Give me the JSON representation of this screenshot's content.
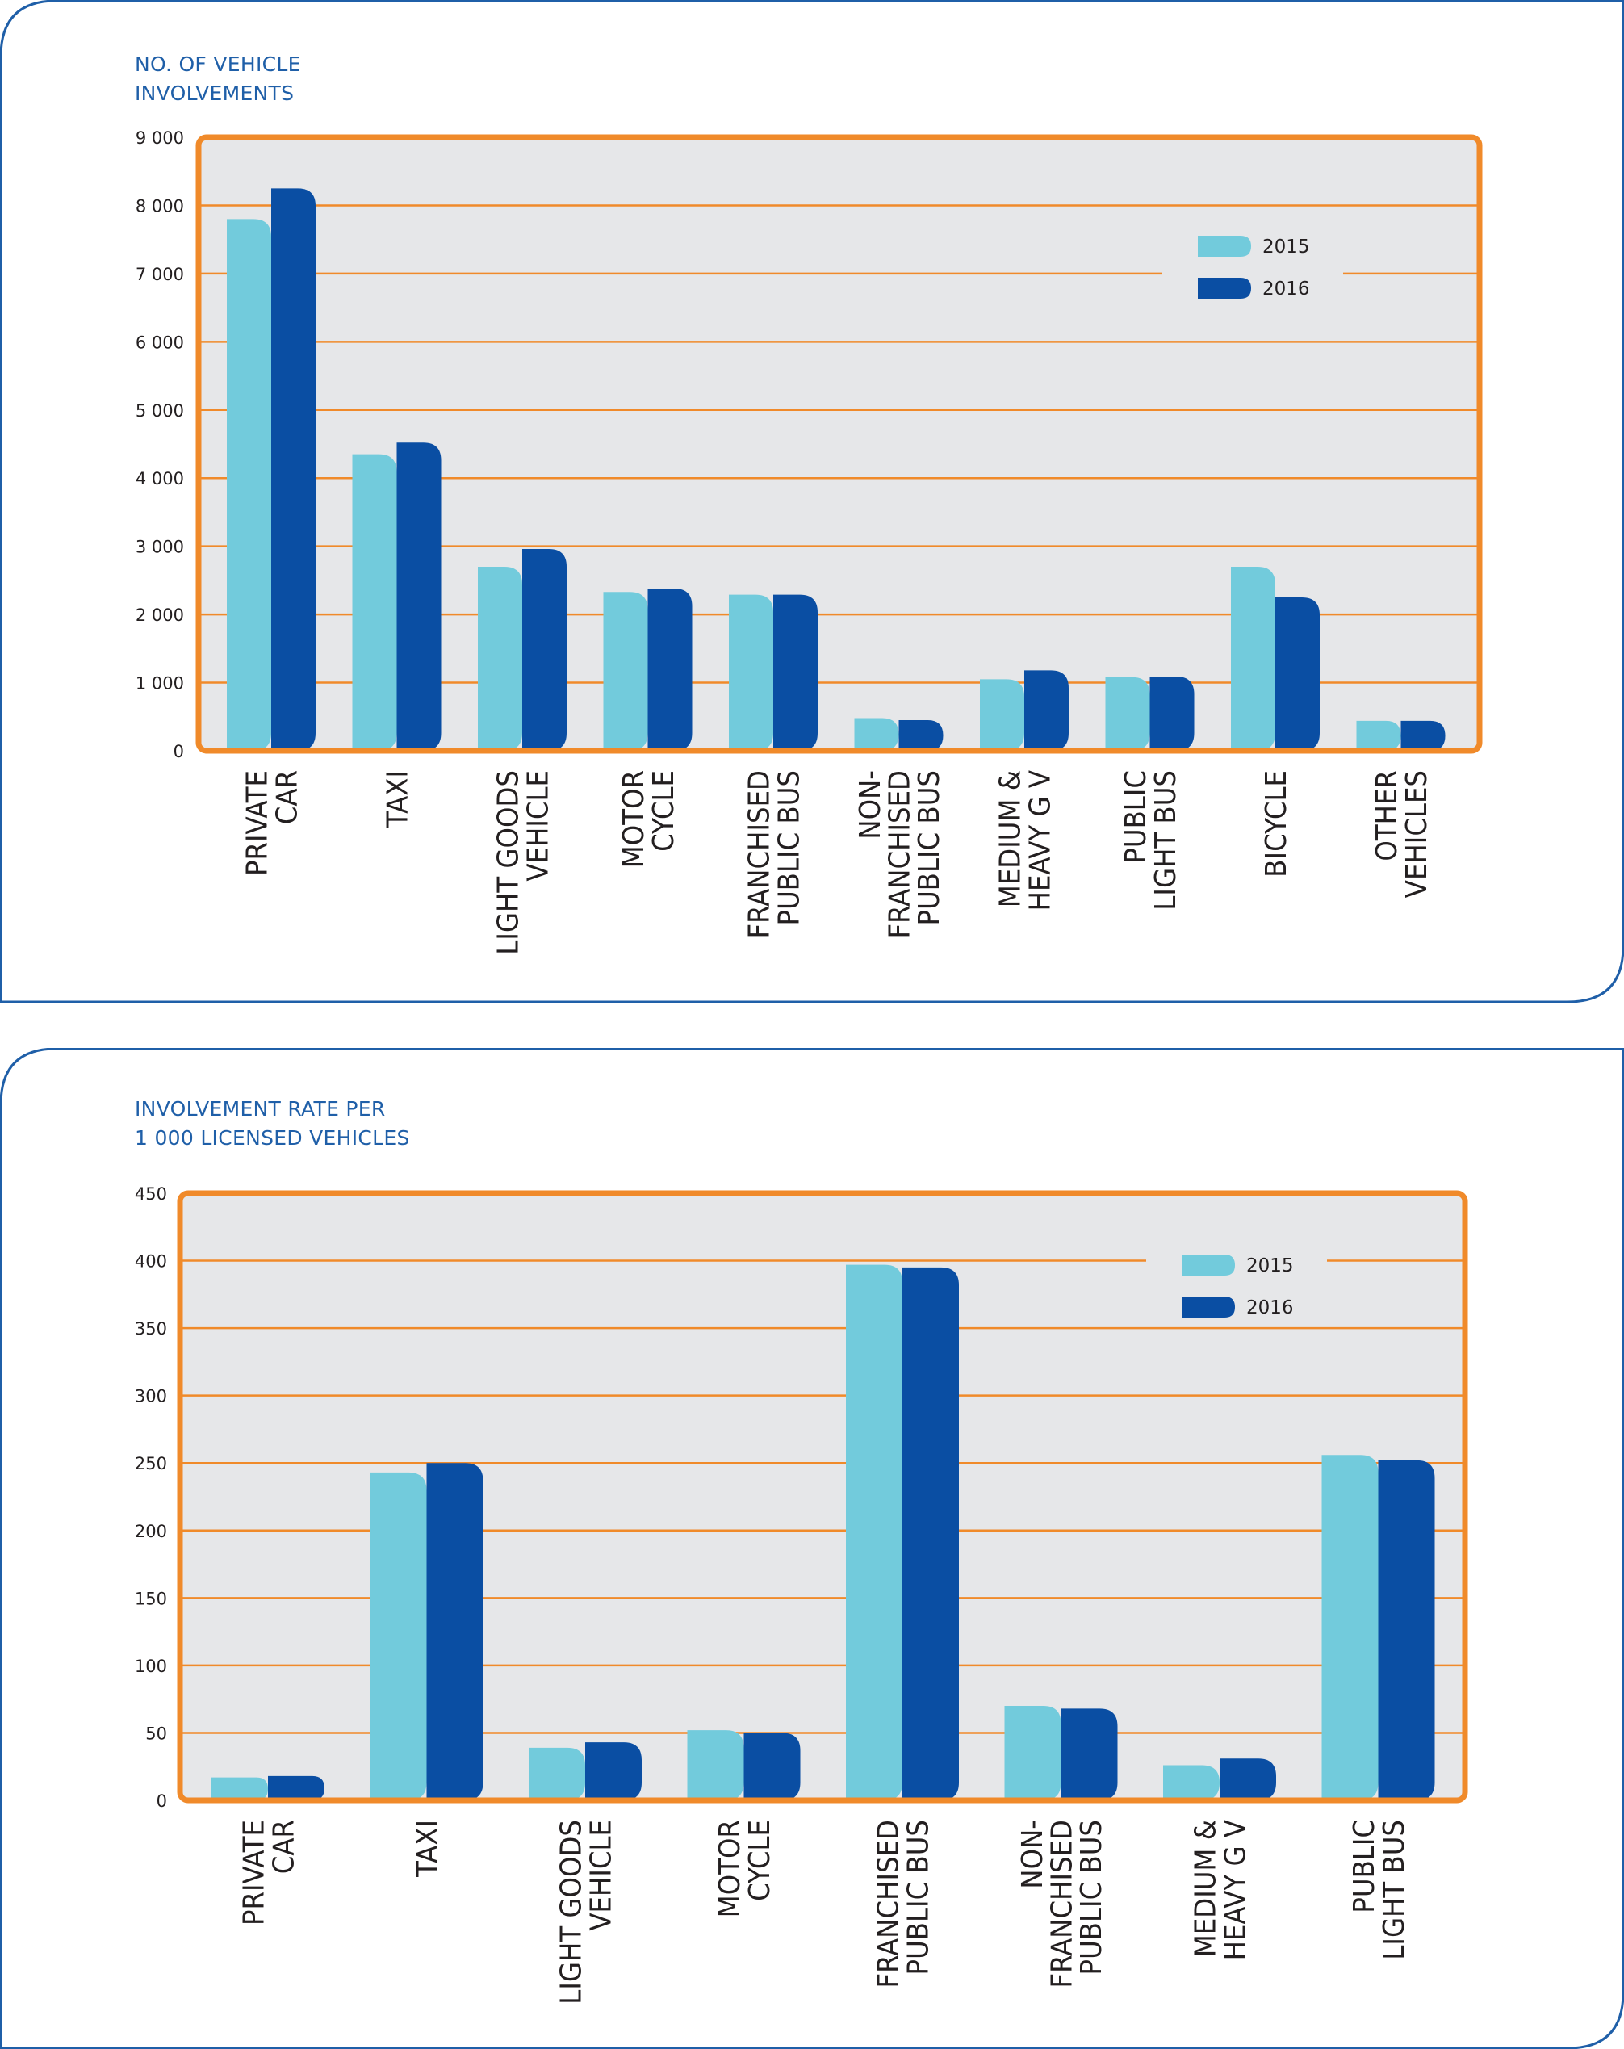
{
  "colors": {
    "series_2015": "#72cbdc",
    "series_2016": "#0a4ea3",
    "grid": "#f08a2a",
    "plot_border": "#f08a2a",
    "plot_background": "#e6e7e9",
    "panel_border": "#1f5fa8",
    "text": "#231f20",
    "title": "#1f5fa8"
  },
  "chart_data": [
    {
      "type": "bar",
      "title_lines": [
        "NO. OF VEHICLE",
        "INVOLVEMENTS"
      ],
      "xlabel": "",
      "ylabel": "",
      "ylim": [
        0,
        9000
      ],
      "y_ticks": [
        0,
        1000,
        2000,
        3000,
        4000,
        5000,
        6000,
        7000,
        8000,
        9000
      ],
      "y_tick_labels": [
        "0",
        "1 000",
        "2 000",
        "3 000",
        "4 000",
        "5 000",
        "6 000",
        "7 000",
        "8 000",
        "9 000"
      ],
      "grid": true,
      "legend": "top-right",
      "categories": [
        [
          "PRIVATE",
          "CAR"
        ],
        [
          "TAXI"
        ],
        [
          "LIGHT GOODS",
          "VEHICLE"
        ],
        [
          "MOTOR",
          "CYCLE"
        ],
        [
          "FRANCHISED",
          "PUBLIC BUS"
        ],
        [
          "NON-",
          "FRANCHISED",
          "PUBLIC BUS"
        ],
        [
          "MEDIUM &",
          "HEAVY G V"
        ],
        [
          "PUBLIC",
          "LIGHT BUS"
        ],
        [
          "BICYCLE"
        ],
        [
          "OTHER",
          "VEHICLES"
        ]
      ],
      "series": [
        {
          "name": "2015",
          "values": [
            7800,
            4350,
            2700,
            2330,
            2290,
            480,
            1050,
            1080,
            2700,
            440
          ]
        },
        {
          "name": "2016",
          "values": [
            8250,
            4520,
            2960,
            2380,
            2290,
            450,
            1180,
            1090,
            2250,
            440
          ]
        }
      ]
    },
    {
      "type": "bar",
      "title_lines": [
        "INVOLVEMENT RATE PER",
        "1 000 LICENSED VEHICLES"
      ],
      "xlabel": "",
      "ylabel": "",
      "ylim": [
        0,
        450
      ],
      "y_ticks": [
        0,
        50,
        100,
        150,
        200,
        250,
        300,
        350,
        400,
        450
      ],
      "y_tick_labels": [
        "0",
        "50",
        "100",
        "150",
        "200",
        "250",
        "300",
        "350",
        "400",
        "450"
      ],
      "grid": true,
      "legend": "top-right",
      "categories": [
        [
          "PRIVATE",
          "CAR"
        ],
        [
          "TAXI"
        ],
        [
          "LIGHT GOODS",
          "VEHICLE"
        ],
        [
          "MOTOR",
          "CYCLE"
        ],
        [
          "FRANCHISED",
          "PUBLIC BUS"
        ],
        [
          "NON-",
          "FRANCHISED",
          "PUBLIC BUS"
        ],
        [
          "MEDIUM &",
          "HEAVY G V"
        ],
        [
          "PUBLIC",
          "LIGHT BUS"
        ]
      ],
      "series": [
        {
          "name": "2015",
          "values": [
            17,
            243,
            39,
            52,
            397,
            70,
            26,
            256
          ]
        },
        {
          "name": "2016",
          "values": [
            18,
            250,
            43,
            50,
            395,
            68,
            31,
            252
          ]
        }
      ]
    }
  ]
}
